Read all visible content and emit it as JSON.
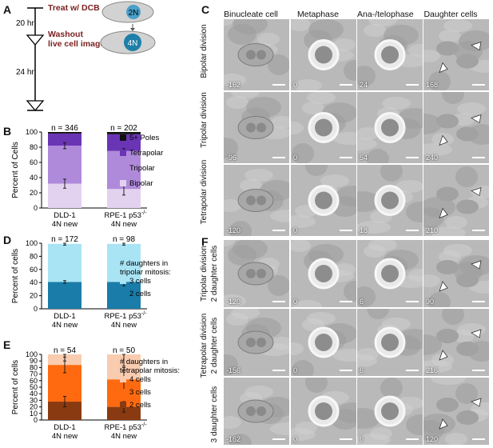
{
  "panels": {
    "A": {
      "letter": "A",
      "t1_label": "20 hr",
      "t2_label": "24 hr",
      "event1": "Treat w/ DCB",
      "event2_line1": "Washout",
      "event2_line2": "live cell image",
      "cell1_label": "2N",
      "cell2_label": "4N",
      "accent_color": "#7a1f1f",
      "nucleus_color": "#4aa0c8"
    },
    "B": {
      "letter": "B"
    },
    "C": {
      "letter": "C",
      "col_headers": [
        "Binucleate cell",
        "Metaphase",
        "Ana-/telophase",
        "Daughter cells"
      ],
      "row_labels": [
        "Bipolar division",
        "Tripolar division",
        "Tetrapolar division"
      ],
      "times": [
        [
          "-162",
          "0",
          "24",
          "168"
        ],
        [
          "-96",
          "0",
          "54",
          "240"
        ],
        [
          "-120",
          "0",
          "18",
          "210"
        ]
      ]
    },
    "D": {
      "letter": "D"
    },
    "E": {
      "letter": "E"
    },
    "F": {
      "letter": "F",
      "row_labels": [
        [
          "Tripolar division",
          "2 daughter cells"
        ],
        [
          "Tetrapolar division",
          "2 daughter cells"
        ],
        [
          "3 daughter cells",
          ""
        ]
      ],
      "times": [
        [
          "-120",
          "0",
          "6",
          "90"
        ],
        [
          "-156",
          "0",
          "6",
          "216"
        ],
        [
          "-162",
          "0",
          "6",
          "120"
        ]
      ]
    }
  },
  "chart_data": [
    {
      "id": "B",
      "type": "bar",
      "stacked": true,
      "ylabel": "Percent of Cells",
      "ylim": [
        0,
        100
      ],
      "yticks": [
        0,
        20,
        40,
        60,
        80,
        100
      ],
      "categories": [
        [
          "DLD-1",
          "4N new"
        ],
        [
          "RPE-1 p53",
          "-/-",
          "4N new"
        ]
      ],
      "n_labels": [
        "n = 346",
        "n = 202"
      ],
      "series": [
        {
          "name": "Bipolar",
          "values": [
            32,
            25
          ],
          "color": "#e3d2ef"
        },
        {
          "name": "Tripolar",
          "values": [
            50,
            50
          ],
          "color": "#b08ada"
        },
        {
          "name": "Tetrapolar",
          "values": [
            16,
            22
          ],
          "color": "#6a35b5"
        },
        {
          "name": "5+ Poles",
          "values": [
            2,
            3
          ],
          "color": "#111111"
        }
      ],
      "errors": [
        {
          "series": "Bipolar",
          "values": [
            6,
            8
          ]
        },
        {
          "series": "Tripolar",
          "values": [
            4,
            3
          ]
        }
      ],
      "legend": "right"
    },
    {
      "id": "D",
      "type": "bar",
      "stacked": true,
      "ylabel": "Percent of cells",
      "ylim": [
        0,
        100
      ],
      "yticks": [
        0,
        20,
        40,
        60,
        80,
        100
      ],
      "categories": [
        [
          "DLD-1",
          "4N new"
        ],
        [
          "RPE-1 p53",
          "-/-",
          "4N new"
        ]
      ],
      "n_labels": [
        "n = 172",
        "n = 98"
      ],
      "series": [
        {
          "name": "2 cells",
          "values": [
            41,
            41
          ],
          "color": "#1a7ca8"
        },
        {
          "name": "3 cells",
          "values": [
            58,
            58
          ],
          "color": "#a9e4f5"
        }
      ],
      "errors": [
        {
          "series": "2 cells",
          "values": [
            2,
            6
          ]
        },
        {
          "series": "3 cells",
          "values": [
            2,
            2
          ]
        }
      ],
      "legend_title": [
        "# daughters in",
        "tripolar mitosis:"
      ],
      "legend": "right"
    },
    {
      "id": "E",
      "type": "bar",
      "stacked": true,
      "ylabel": "Percent of cells",
      "ylim": [
        0,
        100
      ],
      "yticks": [
        0,
        10,
        20,
        30,
        40,
        50,
        60,
        70,
        80,
        90,
        100
      ],
      "categories": [
        [
          "DLD-1",
          "4N new"
        ],
        [
          "RPE-1 p53",
          "-/-",
          "4N new"
        ]
      ],
      "n_labels": [
        "n = 54",
        "n = 50"
      ],
      "series": [
        {
          "name": "2 cells",
          "values": [
            28,
            20
          ],
          "color": "#8a3a10"
        },
        {
          "name": "3 cells",
          "values": [
            56,
            42
          ],
          "color": "#ff6a10"
        },
        {
          "name": "4 cells",
          "values": [
            16,
            38
          ],
          "color": "#f9ccb0"
        }
      ],
      "errors": [
        {
          "series": "2 cells",
          "values": [
            8,
            8
          ]
        },
        {
          "series": "3 cells",
          "values": [
            12,
            18
          ]
        },
        {
          "series": "4 cells",
          "values": [
            10,
            18
          ]
        }
      ],
      "legend_title": [
        "# daughters in",
        "tetrapolar mitosis:"
      ],
      "legend": "right"
    }
  ]
}
